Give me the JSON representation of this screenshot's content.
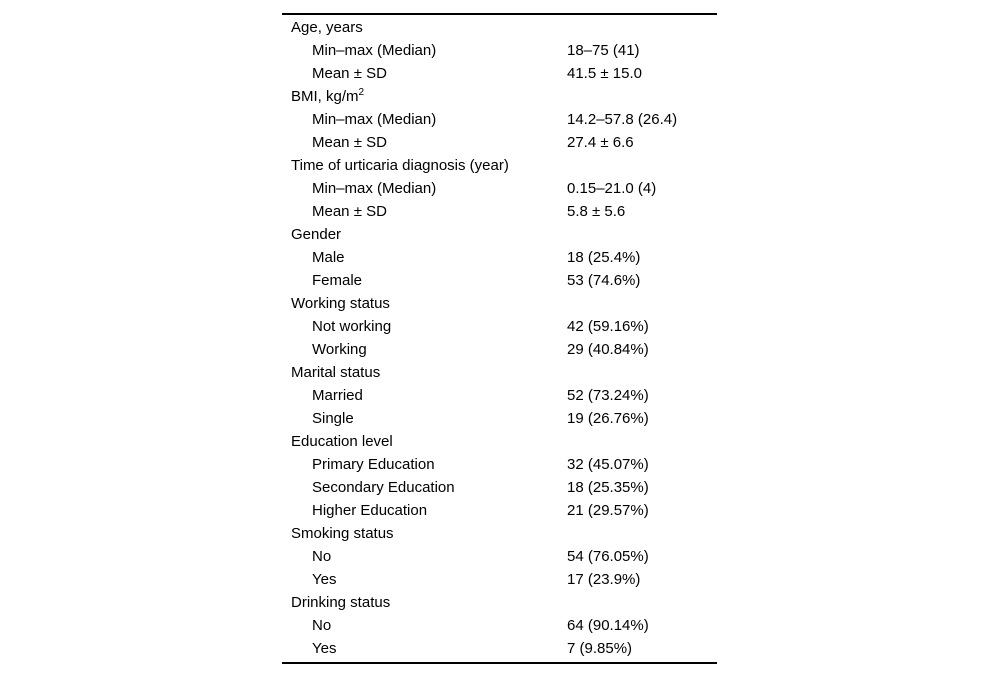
{
  "page": {
    "background_color": "#ffffff",
    "text_color": "#000000",
    "rule_color": "#000000"
  },
  "table": {
    "description": "patient-demographic-characteristics-table",
    "rows": [
      {
        "label": "Age, years",
        "value": "",
        "indent": 0
      },
      {
        "label": "Min–max (Median)",
        "value": "18–75 (41)",
        "indent": 1
      },
      {
        "label": "Mean ± SD",
        "value": "41.5 ± 15.0",
        "indent": 1
      },
      {
        "label": "BMI, kg/m^2",
        "value": "",
        "indent": 0
      },
      {
        "label": "Min–max (Median)",
        "value": "14.2–57.8 (26.4)",
        "indent": 1
      },
      {
        "label": "Mean ± SD",
        "value": "27.4 ± 6.6",
        "indent": 1
      },
      {
        "label": "Time of urticaria diagnosis (year)",
        "value": "",
        "indent": 0
      },
      {
        "label": "Min–max (Median)",
        "value": "0.15–21.0 (4)",
        "indent": 1
      },
      {
        "label": "Mean ± SD",
        "value": "5.8 ± 5.6",
        "indent": 1
      },
      {
        "label": "Gender",
        "value": "",
        "indent": 0
      },
      {
        "label": "Male",
        "value": "18 (25.4%)",
        "indent": 1
      },
      {
        "label": "Female",
        "value": "53 (74.6%)",
        "indent": 1
      },
      {
        "label": "Working status",
        "value": "",
        "indent": 0
      },
      {
        "label": "Not working",
        "value": "42 (59.16%)",
        "indent": 1
      },
      {
        "label": "Working",
        "value": "29 (40.84%)",
        "indent": 1
      },
      {
        "label": "Marital status",
        "value": "",
        "indent": 0
      },
      {
        "label": "Married",
        "value": "52 (73.24%)",
        "indent": 1
      },
      {
        "label": "Single",
        "value": "19 (26.76%)",
        "indent": 1
      },
      {
        "label": "Education level",
        "value": "",
        "indent": 0
      },
      {
        "label": "Primary Education",
        "value": "32 (45.07%)",
        "indent": 1
      },
      {
        "label": "Secondary Education",
        "value": "18 (25.35%)",
        "indent": 1
      },
      {
        "label": "Higher Education",
        "value": "21 (29.57%)",
        "indent": 1
      },
      {
        "label": "Smoking status",
        "value": "",
        "indent": 0
      },
      {
        "label": "No",
        "value": "54 (76.05%)",
        "indent": 1
      },
      {
        "label": "Yes",
        "value": "17 (23.9%)",
        "indent": 1
      },
      {
        "label": "Drinking status",
        "value": "",
        "indent": 0
      },
      {
        "label": "No",
        "value": "64 (90.14%)",
        "indent": 1
      },
      {
        "label": "Yes",
        "value": "7 (9.85%)",
        "indent": 1
      }
    ]
  }
}
